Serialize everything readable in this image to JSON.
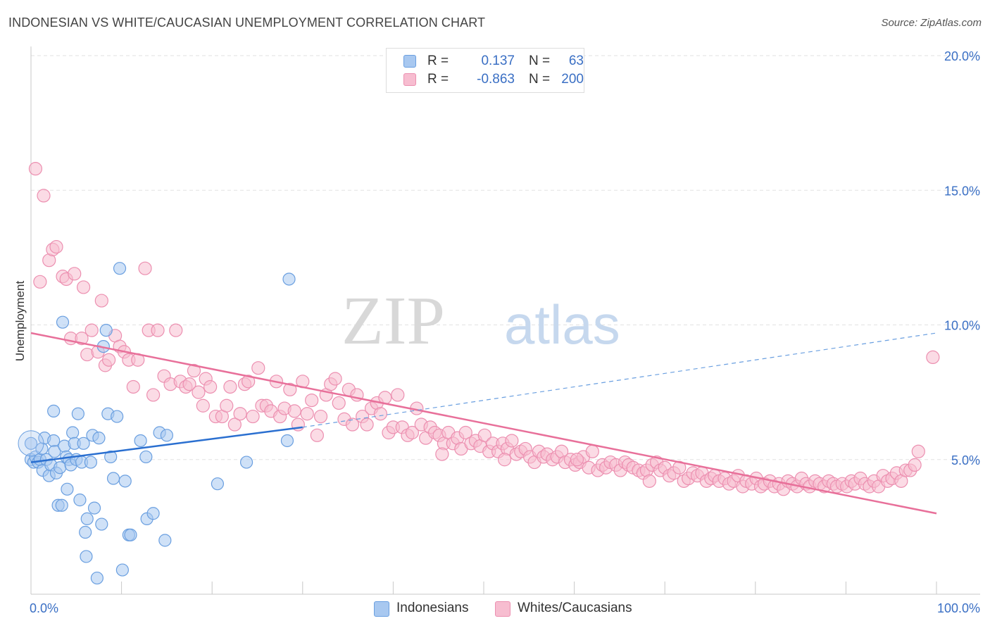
{
  "title": "INDONESIAN VS WHITE/CAUCASIAN UNEMPLOYMENT CORRELATION CHART",
  "source": "Source: ZipAtlas.com",
  "watermark": {
    "zip": "ZIP",
    "atlas": "atlas"
  },
  "legend": {
    "rows": [
      {
        "r_label": "R =",
        "r_value": "0.137",
        "n_label": "N =",
        "n_value": "63",
        "color": "#a8c8f0",
        "stroke": "#6a9fe0"
      },
      {
        "r_label": "R =",
        "r_value": "-0.863",
        "n_label": "N =",
        "n_value": "200",
        "color": "#f7bdd0",
        "stroke": "#ec8fb0"
      }
    ]
  },
  "bottom_legend": [
    {
      "label": "Indonesians",
      "color": "#a8c8f0",
      "stroke": "#6a9fe0"
    },
    {
      "label": "Whites/Caucasians",
      "color": "#f7bdd0",
      "stroke": "#ec8fb0"
    }
  ],
  "chart_data": {
    "type": "scatter",
    "title": "INDONESIAN VS WHITE/CAUCASIAN UNEMPLOYMENT CORRELATION CHART",
    "xlabel": "",
    "ylabel": "Unemployment",
    "xlim": [
      0,
      100
    ],
    "ylim": [
      0,
      20
    ],
    "x_tick_labels": [
      "0.0%",
      "100.0%"
    ],
    "y_ticks": [
      5,
      10,
      15,
      20
    ],
    "y_tick_labels": [
      "5.0%",
      "10.0%",
      "15.0%",
      "20.0%"
    ],
    "grid": "horizontal dashed",
    "series": [
      {
        "name": "Indonesians",
        "color": "#6a9fe0",
        "fill": "#a8c8f0",
        "trend": {
          "x": [
            0,
            30
          ],
          "y": [
            4.9,
            6.2
          ],
          "extended_to": [
            100,
            9.7
          ]
        },
        "points": [
          [
            0,
            5.6
          ],
          [
            0,
            5.0
          ],
          [
            0.3,
            4.9
          ],
          [
            0.5,
            5.1
          ],
          [
            0.8,
            4.9
          ],
          [
            1,
            5.0
          ],
          [
            1.2,
            5.4
          ],
          [
            1.3,
            4.6
          ],
          [
            1.5,
            5.8
          ],
          [
            1.7,
            5.0
          ],
          [
            2,
            4.4
          ],
          [
            2.2,
            4.8
          ],
          [
            2.5,
            5.7
          ],
          [
            2.6,
            5.3
          ],
          [
            2.8,
            4.5
          ],
          [
            2.5,
            6.8
          ],
          [
            3,
            3.3
          ],
          [
            3.2,
            4.7
          ],
          [
            3.5,
            10.1
          ],
          [
            3.4,
            3.3
          ],
          [
            3.7,
            5.5
          ],
          [
            3.9,
            5.1
          ],
          [
            4,
            3.9
          ],
          [
            4.2,
            5.0
          ],
          [
            4.4,
            4.8
          ],
          [
            4.6,
            6.0
          ],
          [
            4.8,
            5.6
          ],
          [
            5,
            5.0
          ],
          [
            5.2,
            6.7
          ],
          [
            5.4,
            3.5
          ],
          [
            5.6,
            4.9
          ],
          [
            5.8,
            5.6
          ],
          [
            6,
            2.3
          ],
          [
            6.1,
            1.4
          ],
          [
            6.2,
            2.8
          ],
          [
            6.6,
            4.9
          ],
          [
            6.8,
            5.9
          ],
          [
            7,
            3.2
          ],
          [
            7.3,
            0.6
          ],
          [
            7.5,
            5.8
          ],
          [
            7.8,
            2.6
          ],
          [
            8,
            9.2
          ],
          [
            8.3,
            9.8
          ],
          [
            8.5,
            6.7
          ],
          [
            8.8,
            5.1
          ],
          [
            9.1,
            4.3
          ],
          [
            9.5,
            6.6
          ],
          [
            9.8,
            12.1
          ],
          [
            10.1,
            0.9
          ],
          [
            10.4,
            4.2
          ],
          [
            10.8,
            2.2
          ],
          [
            11,
            2.2
          ],
          [
            12.1,
            5.7
          ],
          [
            12.8,
            2.8
          ],
          [
            12.7,
            5.1
          ],
          [
            14.2,
            6.0
          ],
          [
            14.8,
            2.0
          ],
          [
            15,
            5.9
          ],
          [
            20.6,
            4.1
          ],
          [
            23.8,
            4.9
          ],
          [
            28.3,
            5.7
          ],
          [
            28.5,
            11.7
          ],
          [
            13.5,
            3.0
          ]
        ]
      },
      {
        "name": "Whites/Caucasians",
        "color": "#ec8fb0",
        "fill": "#f7bdd0",
        "trend": {
          "x": [
            0,
            100
          ],
          "y": [
            9.7,
            3.0
          ]
        },
        "points": [
          [
            0.5,
            15.8
          ],
          [
            1,
            11.6
          ],
          [
            1.4,
            14.8
          ],
          [
            2,
            12.4
          ],
          [
            2.4,
            12.8
          ],
          [
            2.8,
            12.9
          ],
          [
            3.5,
            11.8
          ],
          [
            3.9,
            11.7
          ],
          [
            4.4,
            9.5
          ],
          [
            4.8,
            11.9
          ],
          [
            5.6,
            9.5
          ],
          [
            5.8,
            11.4
          ],
          [
            6.2,
            8.9
          ],
          [
            6.7,
            9.8
          ],
          [
            7.4,
            9.0
          ],
          [
            7.8,
            10.9
          ],
          [
            8.2,
            8.5
          ],
          [
            8.6,
            8.7
          ],
          [
            9.3,
            9.6
          ],
          [
            9.8,
            9.2
          ],
          [
            10.3,
            9.0
          ],
          [
            10.8,
            8.7
          ],
          [
            11.3,
            7.7
          ],
          [
            11.8,
            8.7
          ],
          [
            12.6,
            12.1
          ],
          [
            13,
            9.8
          ],
          [
            13.5,
            7.4
          ],
          [
            14,
            9.8
          ],
          [
            14.7,
            8.1
          ],
          [
            15.4,
            7.8
          ],
          [
            16,
            9.8
          ],
          [
            16.5,
            7.9
          ],
          [
            17.1,
            7.7
          ],
          [
            17.5,
            7.8
          ],
          [
            18,
            8.3
          ],
          [
            18.5,
            7.5
          ],
          [
            19,
            7.0
          ],
          [
            19.3,
            8.0
          ],
          [
            19.8,
            7.7
          ],
          [
            20.4,
            6.6
          ],
          [
            21.1,
            6.6
          ],
          [
            21.6,
            7.0
          ],
          [
            22,
            7.7
          ],
          [
            22.5,
            6.3
          ],
          [
            23.1,
            6.7
          ],
          [
            23.6,
            7.8
          ],
          [
            24,
            7.9
          ],
          [
            24.5,
            6.6
          ],
          [
            25.1,
            8.4
          ],
          [
            25.5,
            7.0
          ],
          [
            26,
            7.0
          ],
          [
            26.5,
            6.8
          ],
          [
            27.1,
            7.9
          ],
          [
            27.5,
            6.6
          ],
          [
            28,
            6.9
          ],
          [
            28.6,
            7.6
          ],
          [
            29.1,
            6.8
          ],
          [
            29.5,
            6.3
          ],
          [
            30,
            7.9
          ],
          [
            30.5,
            6.7
          ],
          [
            31,
            7.2
          ],
          [
            31.6,
            5.9
          ],
          [
            32,
            6.6
          ],
          [
            32.6,
            7.4
          ],
          [
            33.1,
            7.8
          ],
          [
            33.6,
            8.0
          ],
          [
            34,
            7.1
          ],
          [
            34.6,
            6.5
          ],
          [
            35.1,
            7.6
          ],
          [
            35.5,
            6.3
          ],
          [
            36,
            7.4
          ],
          [
            36.6,
            6.6
          ],
          [
            37.1,
            6.3
          ],
          [
            37.6,
            6.9
          ],
          [
            38.2,
            7.1
          ],
          [
            38.6,
            6.7
          ],
          [
            39.1,
            7.3
          ],
          [
            39.5,
            6.0
          ],
          [
            40,
            6.2
          ],
          [
            40.5,
            7.4
          ],
          [
            41,
            6.2
          ],
          [
            41.6,
            5.9
          ],
          [
            42.1,
            6.0
          ],
          [
            42.6,
            6.9
          ],
          [
            43.1,
            6.3
          ],
          [
            43.6,
            5.8
          ],
          [
            44.1,
            6.2
          ],
          [
            44.6,
            6.0
          ],
          [
            45.1,
            5.9
          ],
          [
            45.6,
            5.6
          ],
          [
            46.1,
            6.0
          ],
          [
            46.6,
            5.6
          ],
          [
            47.1,
            5.8
          ],
          [
            47.5,
            5.4
          ],
          [
            48,
            6.0
          ],
          [
            48.6,
            5.6
          ],
          [
            49.1,
            5.7
          ],
          [
            49.6,
            5.5
          ],
          [
            50.1,
            5.9
          ],
          [
            50.6,
            5.3
          ],
          [
            51,
            5.6
          ],
          [
            51.6,
            5.3
          ],
          [
            52.1,
            5.6
          ],
          [
            52.6,
            5.4
          ],
          [
            53.1,
            5.7
          ],
          [
            53.6,
            5.2
          ],
          [
            54.1,
            5.3
          ],
          [
            54.6,
            5.4
          ],
          [
            55.1,
            5.1
          ],
          [
            55.6,
            4.9
          ],
          [
            56.1,
            5.3
          ],
          [
            56.6,
            5.1
          ],
          [
            57,
            5.2
          ],
          [
            57.6,
            5.0
          ],
          [
            58.1,
            5.1
          ],
          [
            58.6,
            5.3
          ],
          [
            59,
            4.9
          ],
          [
            59.6,
            5.0
          ],
          [
            60.1,
            4.8
          ],
          [
            60.6,
            4.9
          ],
          [
            61,
            5.1
          ],
          [
            61.6,
            4.7
          ],
          [
            62,
            5.3
          ],
          [
            62.6,
            4.6
          ],
          [
            63.1,
            4.8
          ],
          [
            63.5,
            4.7
          ],
          [
            64,
            4.9
          ],
          [
            64.6,
            4.8
          ],
          [
            65.1,
            4.6
          ],
          [
            65.6,
            4.9
          ],
          [
            66,
            4.8
          ],
          [
            66.5,
            4.7
          ],
          [
            67.1,
            4.6
          ],
          [
            67.6,
            4.5
          ],
          [
            68,
            4.6
          ],
          [
            68.6,
            4.8
          ],
          [
            69.1,
            4.9
          ],
          [
            69.5,
            4.6
          ],
          [
            70,
            4.7
          ],
          [
            70.5,
            4.4
          ],
          [
            71,
            4.5
          ],
          [
            71.6,
            4.7
          ],
          [
            72.1,
            4.2
          ],
          [
            72.6,
            4.3
          ],
          [
            73.1,
            4.5
          ],
          [
            73.6,
            4.4
          ],
          [
            74.1,
            4.5
          ],
          [
            74.6,
            4.2
          ],
          [
            75.1,
            4.3
          ],
          [
            75.5,
            4.4
          ],
          [
            76,
            4.2
          ],
          [
            76.6,
            4.3
          ],
          [
            77.1,
            4.1
          ],
          [
            77.6,
            4.2
          ],
          [
            78.1,
            4.4
          ],
          [
            78.6,
            4.0
          ],
          [
            79,
            4.2
          ],
          [
            79.6,
            4.1
          ],
          [
            80.1,
            4.3
          ],
          [
            80.6,
            4.0
          ],
          [
            81,
            4.1
          ],
          [
            81.6,
            4.2
          ],
          [
            82.1,
            4.0
          ],
          [
            82.6,
            4.1
          ],
          [
            83.1,
            3.9
          ],
          [
            83.6,
            4.2
          ],
          [
            84.1,
            4.1
          ],
          [
            84.6,
            4.0
          ],
          [
            85.1,
            4.3
          ],
          [
            85.6,
            4.1
          ],
          [
            86,
            4.0
          ],
          [
            86.6,
            4.2
          ],
          [
            87.1,
            4.1
          ],
          [
            87.6,
            4.0
          ],
          [
            88.1,
            4.2
          ],
          [
            88.6,
            4.1
          ],
          [
            89,
            4.0
          ],
          [
            89.6,
            4.1
          ],
          [
            90.1,
            4.0
          ],
          [
            90.6,
            4.2
          ],
          [
            91,
            4.1
          ],
          [
            91.6,
            4.3
          ],
          [
            92.1,
            4.1
          ],
          [
            92.6,
            4.0
          ],
          [
            93.1,
            4.2
          ],
          [
            93.6,
            4.0
          ],
          [
            94.1,
            4.4
          ],
          [
            94.6,
            4.2
          ],
          [
            95.1,
            4.3
          ],
          [
            95.6,
            4.5
          ],
          [
            96.1,
            4.2
          ],
          [
            96.6,
            4.6
          ],
          [
            97.1,
            4.6
          ],
          [
            97.6,
            4.8
          ],
          [
            98,
            5.3
          ],
          [
            99.6,
            8.8
          ],
          [
            60.3,
            5.0
          ],
          [
            45.4,
            5.2
          ],
          [
            52.3,
            5.0
          ],
          [
            68.3,
            4.2
          ]
        ]
      }
    ]
  }
}
